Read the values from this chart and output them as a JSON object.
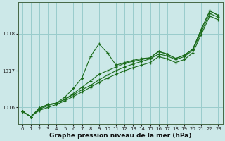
{
  "xlabel": "Graphe pression niveau de la mer (hPa)",
  "bg_color": "#cce8e8",
  "grid_color": "#99cccc",
  "line_color": "#1a6b1a",
  "ylim": [
    1015.55,
    1018.85
  ],
  "xlim": [
    -0.5,
    23.5
  ],
  "yticks": [
    1016,
    1017,
    1018
  ],
  "xticks": [
    0,
    1,
    2,
    3,
    4,
    5,
    6,
    7,
    8,
    9,
    10,
    11,
    12,
    13,
    14,
    15,
    16,
    17,
    18,
    19,
    20,
    21,
    22,
    23
  ],
  "series_wiggly": [
    1015.9,
    1015.75,
    1015.98,
    1016.08,
    1016.12,
    1016.28,
    1016.52,
    1016.8,
    1017.38,
    1017.73,
    1017.48,
    1017.15,
    1017.22,
    1017.28,
    1017.33,
    1017.35,
    1017.52,
    1017.45,
    1017.33,
    1017.42,
    1017.58,
    1018.12,
    1018.62,
    1018.5
  ],
  "series_mid1": [
    1015.9,
    1015.75,
    1015.98,
    1016.08,
    1016.12,
    1016.22,
    1016.38,
    1016.55,
    1016.72,
    1016.9,
    1017.0,
    1017.1,
    1017.2,
    1017.25,
    1017.3,
    1017.35,
    1017.52,
    1017.45,
    1017.33,
    1017.42,
    1017.58,
    1018.12,
    1018.62,
    1018.5
  ],
  "series_straight1": [
    1015.9,
    1015.75,
    1015.95,
    1016.05,
    1016.12,
    1016.22,
    1016.35,
    1016.48,
    1016.6,
    1016.75,
    1016.88,
    1017.0,
    1017.1,
    1017.18,
    1017.25,
    1017.32,
    1017.45,
    1017.4,
    1017.3,
    1017.38,
    1017.55,
    1018.05,
    1018.55,
    1018.45
  ],
  "series_straight2": [
    1015.9,
    1015.75,
    1015.92,
    1016.0,
    1016.08,
    1016.18,
    1016.3,
    1016.42,
    1016.55,
    1016.68,
    1016.8,
    1016.9,
    1017.0,
    1017.08,
    1017.15,
    1017.22,
    1017.38,
    1017.32,
    1017.22,
    1017.3,
    1017.48,
    1017.98,
    1018.48,
    1018.38
  ]
}
